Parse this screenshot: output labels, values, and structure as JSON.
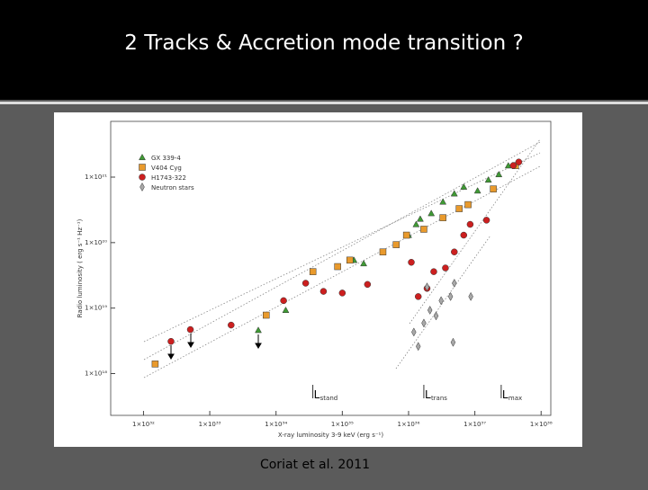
{
  "slide": {
    "title": "2 Tracks & Accretion mode transition ?",
    "caption": "Coriat et al. 2011"
  },
  "chart_data": {
    "type": "scatter",
    "xlabel": "X-ray luminosity 3-9 keV (erg s⁻¹)",
    "ylabel": "Radio luminosity ( erg s⁻¹ Hz⁻¹)",
    "xscale": "log",
    "yscale": "log",
    "xlim": [
      3.2e+31,
      1.4e+38
    ],
    "ylim": [
      2.3e+17,
      7.1e+21
    ],
    "xticks": [
      {
        "value": 1e+32,
        "label": "1×10³²"
      },
      {
        "value": 1e+33,
        "label": "1×10³³"
      },
      {
        "value": 1e+34,
        "label": "1×10³⁴"
      },
      {
        "value": 1e+35,
        "label": "1×10³⁵"
      },
      {
        "value": 1e+36,
        "label": "1×10³⁶"
      },
      {
        "value": 1e+37,
        "label": "1×10³⁷"
      },
      {
        "value": 1e+38,
        "label": "1×10³⁸"
      }
    ],
    "yticks": [
      {
        "value": 1e+18,
        "label": "1×10¹⁸"
      },
      {
        "value": 1e+19,
        "label": "1×10¹⁹"
      },
      {
        "value": 1e+20,
        "label": "1×10²⁰"
      },
      {
        "value": 1e+21,
        "label": "1×10²¹"
      }
    ],
    "legend": "upper left",
    "series": [
      {
        "name": "GX 339-4",
        "color": "#3f9a34",
        "marker": "triangle",
        "x": [
          5.4e+33,
          1.4e+34,
          1.5e+35,
          2.1e+35,
          1e+36,
          1.3e+36,
          1.5e+36,
          2.2e+36,
          3.3e+36,
          4.9e+36,
          6.8e+36,
          1.1e+37,
          1.6e+37,
          2.3e+37,
          3.2e+37
        ],
        "values": [
          4.6e+18,
          9.3e+18,
          5.4e+19,
          4.8e+19,
          1.3e+20,
          1.9e+20,
          2.3e+20,
          2.8e+20,
          4.2e+20,
          5.6e+20,
          7.1e+20,
          6.2e+20,
          9.1e+20,
          1.1e+21,
          1.5e+21
        ]
      },
      {
        "name": "V404 Cyg",
        "color": "#e99a2c",
        "marker": "square",
        "x": [
          1.5e+32,
          7.1e+33,
          3.6e+34,
          8.5e+34,
          1.3e+35,
          4.1e+35,
          6.5e+35,
          9.3e+35,
          1.7e+36,
          3.3e+36,
          5.8e+36,
          7.9e+36,
          1.9e+37,
          4.1e+37
        ],
        "values": [
          1.4e+18,
          7.8e+18,
          3.6e+19,
          4.3e+19,
          5.4e+19,
          7.2e+19,
          9.3e+19,
          1.3e+20,
          1.6e+20,
          2.4e+20,
          3.3e+20,
          3.8e+20,
          6.6e+20,
          1.5e+21
        ]
      },
      {
        "name": "H1743-322",
        "color": "#cc1f1f",
        "marker": "circle",
        "x": [
          2.6e+32,
          5.1e+32,
          2.1e+33,
          1.3e+34,
          2.8e+34,
          5.2e+34,
          1e+35,
          2.4e+35,
          1.1e+36,
          2.4e+36,
          3.6e+36,
          4.9e+36,
          1.9e+36,
          1.4e+36,
          6.8e+36,
          8.5e+36,
          1.5e+37,
          3.8e+37,
          4.6e+37
        ],
        "values": [
          3.1e+18,
          4.7e+18,
          5.5e+18,
          1.3e+19,
          2.4e+19,
          1.8e+19,
          1.7e+19,
          2.3e+19,
          5e+19,
          3.6e+19,
          4.1e+19,
          7.2e+19,
          2e+19,
          1.5e+19,
          1.3e+20,
          1.9e+20,
          2.2e+20,
          1.5e+21,
          1.7e+21
        ]
      },
      {
        "name": "Neutron stars",
        "color": "#a8a8a8",
        "marker": "diamond",
        "x": [
          1.2e+36,
          1.4e+36,
          1.7e+36,
          2.1e+36,
          2.6e+36,
          3.1e+36,
          4.3e+36,
          4.9e+36,
          8.7e+36,
          4.7e+36,
          1.9e+36
        ],
        "values": [
          4.3e+18,
          2.6e+18,
          5.9e+18,
          9.3e+18,
          7.6e+18,
          1.3e+19,
          1.5e+19,
          2.4e+19,
          1.5e+19,
          3e+18,
          2.1e+19
        ]
      }
    ],
    "annotations": [
      {
        "text": "L",
        "sub": "stand",
        "x": 3.6e+34
      },
      {
        "text": "L",
        "sub": "trans",
        "x": 1.7e+36
      },
      {
        "text": "L",
        "sub": "max",
        "x": 2.5e+37
      }
    ]
  }
}
